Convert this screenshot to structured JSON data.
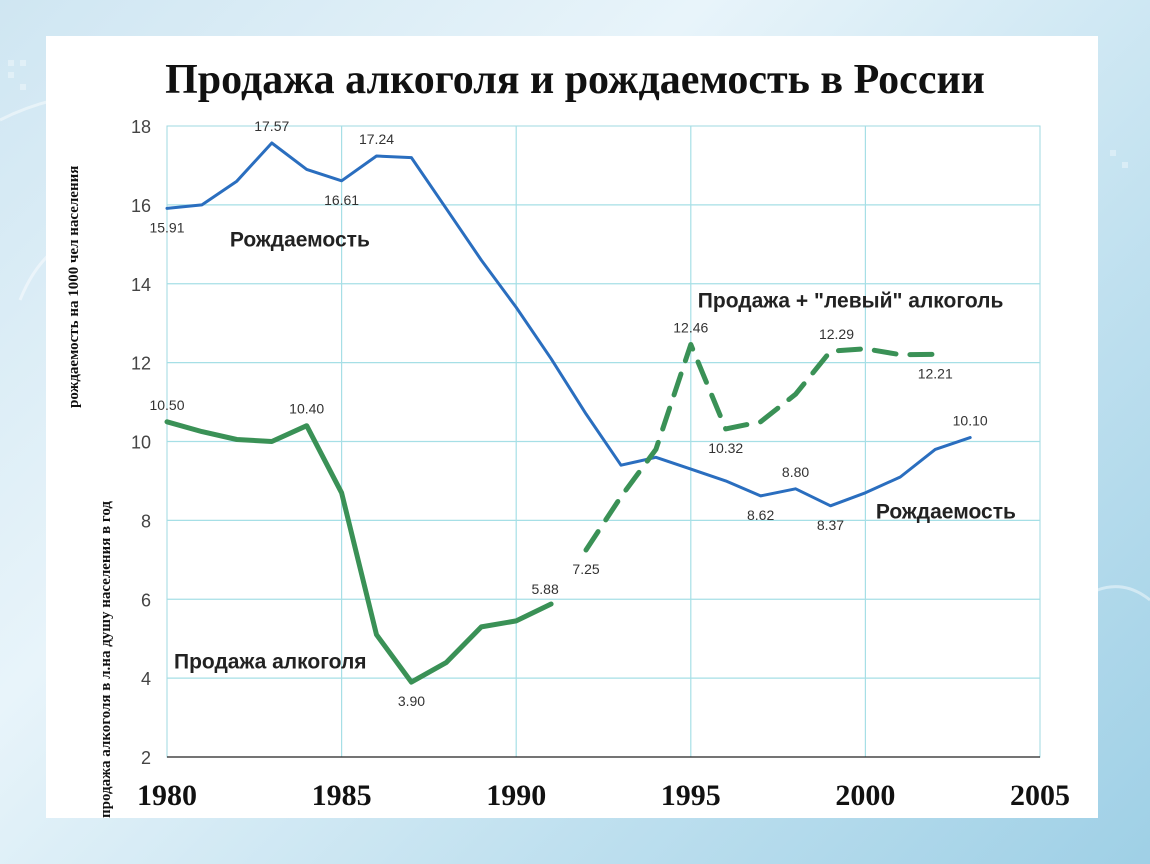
{
  "chart_data": {
    "type": "line",
    "title": "Продажа алкоголя и рождаемость в России",
    "ylabel_birth": "рождаемость на 1000 чел населения",
    "ylabel_alcohol": "продажа алкоголя в л.на душу населения в год",
    "xlim": [
      1980,
      2005
    ],
    "ylim": [
      2,
      18
    ],
    "x_ticks": [
      1980,
      1985,
      1990,
      1995,
      2000,
      2005
    ],
    "y_ticks": [
      2,
      4,
      6,
      8,
      10,
      12,
      14,
      16,
      18
    ],
    "grid": true,
    "series": [
      {
        "key": "birth",
        "color": "#2a6ebf",
        "style": "solid",
        "points": [
          [
            1980,
            15.91
          ],
          [
            1981,
            16.0
          ],
          [
            1982,
            16.6
          ],
          [
            1983,
            17.57
          ],
          [
            1984,
            16.9
          ],
          [
            1985,
            16.61
          ],
          [
            1986,
            17.24
          ],
          [
            1987,
            17.2
          ],
          [
            1988,
            15.9
          ],
          [
            1989,
            14.6
          ],
          [
            1990,
            13.4
          ],
          [
            1991,
            12.1
          ],
          [
            1992,
            10.7
          ],
          [
            1993,
            9.4
          ],
          [
            1994,
            9.6
          ],
          [
            1995,
            9.3
          ],
          [
            1996,
            9.0
          ],
          [
            1997,
            8.62
          ],
          [
            1998,
            8.8
          ],
          [
            1999,
            8.37
          ],
          [
            2000,
            8.7
          ],
          [
            2001,
            9.1
          ],
          [
            2002,
            9.8
          ],
          [
            2003,
            10.1
          ]
        ]
      },
      {
        "key": "alcohol",
        "color": "#3a9156",
        "style": "solid",
        "points": [
          [
            1980,
            10.5
          ],
          [
            1981,
            10.25
          ],
          [
            1982,
            10.05
          ],
          [
            1983,
            10.0
          ],
          [
            1984,
            10.4
          ],
          [
            1985,
            8.7
          ],
          [
            1986,
            5.1
          ],
          [
            1987,
            3.9
          ],
          [
            1988,
            4.4
          ],
          [
            1989,
            5.3
          ],
          [
            1990,
            5.45
          ],
          [
            1991,
            5.88
          ]
        ]
      },
      {
        "key": "alcohol_total",
        "color": "#3a9156",
        "style": "dashed",
        "points": [
          [
            1992,
            7.25
          ],
          [
            1993,
            8.6
          ],
          [
            1994,
            9.8
          ],
          [
            1995,
            12.46
          ],
          [
            1996,
            10.32
          ],
          [
            1997,
            10.5
          ],
          [
            1998,
            11.2
          ],
          [
            1999,
            12.29
          ],
          [
            2000,
            12.35
          ],
          [
            2001,
            12.2
          ],
          [
            2002,
            12.21
          ]
        ]
      }
    ],
    "data_labels": [
      {
        "text": "17.57",
        "x": 1983,
        "y": 17.57,
        "pos": "above"
      },
      {
        "text": "17.24",
        "x": 1986,
        "y": 17.24,
        "pos": "above"
      },
      {
        "text": "15.91",
        "x": 1980,
        "y": 15.91,
        "pos": "below"
      },
      {
        "text": "16.61",
        "x": 1985,
        "y": 16.61,
        "pos": "below"
      },
      {
        "text": "10.50",
        "x": 1980,
        "y": 10.5,
        "pos": "above"
      },
      {
        "text": "10.40",
        "x": 1984,
        "y": 10.4,
        "pos": "above"
      },
      {
        "text": "3.90",
        "x": 1987,
        "y": 3.9,
        "pos": "below"
      },
      {
        "text": "5.88",
        "x": 1991,
        "y": 5.88,
        "pos": "above-left"
      },
      {
        "text": "7.25",
        "x": 1992,
        "y": 7.25,
        "pos": "below"
      },
      {
        "text": "12.46",
        "x": 1995,
        "y": 12.46,
        "pos": "above"
      },
      {
        "text": "10.32",
        "x": 1996,
        "y": 10.32,
        "pos": "below"
      },
      {
        "text": "12.29",
        "x": 1999,
        "y": 12.29,
        "pos": "above-right"
      },
      {
        "text": "12.21",
        "x": 2002,
        "y": 12.21,
        "pos": "below"
      },
      {
        "text": "10.10",
        "x": 2003,
        "y": 10.1,
        "pos": "above"
      },
      {
        "text": "8.80",
        "x": 1998,
        "y": 8.8,
        "pos": "above"
      },
      {
        "text": "8.62",
        "x": 1997,
        "y": 8.62,
        "pos": "below"
      },
      {
        "text": "8.37",
        "x": 1999,
        "y": 8.37,
        "pos": "below"
      }
    ],
    "annotations": [
      {
        "text": "Рождаемость",
        "x": 1981.8,
        "y": 14.95
      },
      {
        "text": "Продажа + \"левый\" алкоголь",
        "x": 1995.2,
        "y": 13.4
      },
      {
        "text": "Рождаемость",
        "x": 2000.3,
        "y": 8.05
      },
      {
        "text": "Продажа алкоголя",
        "x": 1980.2,
        "y": 4.25
      }
    ]
  }
}
